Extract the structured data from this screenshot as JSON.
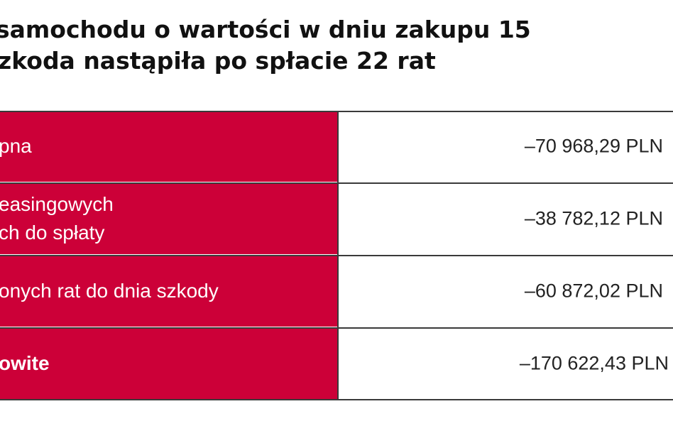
{
  "title": {
    "line1": "samochodu o wartości w dniu zakupu 15",
    "line2": "zkoda nastąpiła po spłacie 22 rat"
  },
  "table": {
    "rows": [
      {
        "label": "pna",
        "value": "–70 968,29 PLN"
      },
      {
        "label": "easingowych\nch do spłaty",
        "value": "–38 782,12 PLN"
      },
      {
        "label": "onych rat do dnia szkody",
        "value": "–60 872,02 PLN"
      },
      {
        "label": "owite",
        "value": "–170 622,43 PLN"
      }
    ]
  },
  "colors": {
    "label_background": "#cc0038",
    "label_text": "#ffffff",
    "grid_lines": "#3a3a3a"
  }
}
